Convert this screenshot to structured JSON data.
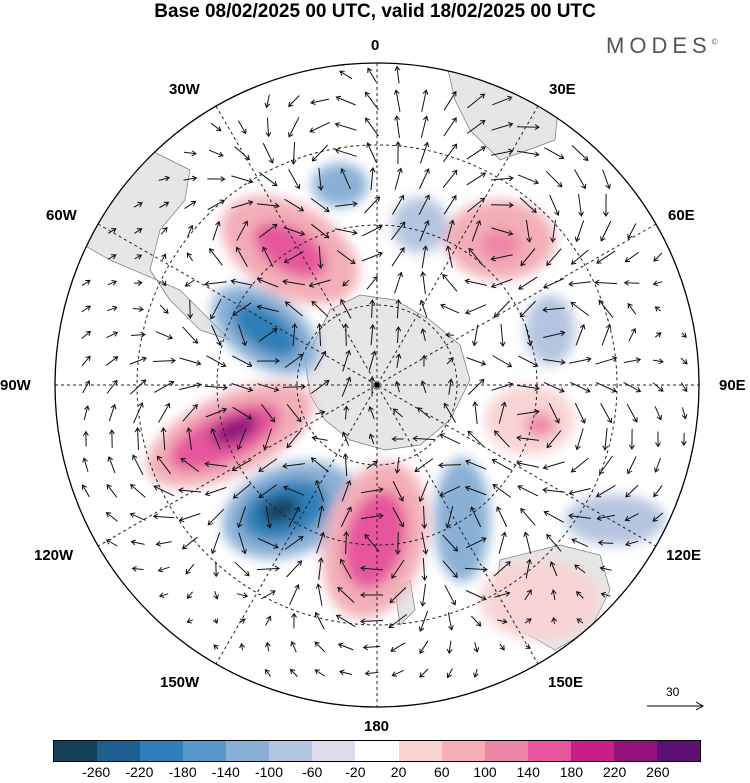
{
  "title": "Base 08/02/2025 00 UTC, valid 18/02/2025 00 UTC",
  "brand": "MODES",
  "brand_mark": "©",
  "lon_labels": {
    "n": "0",
    "ne1": "30E",
    "ne2": "60E",
    "e": "90E",
    "se2": "120E",
    "se1": "150E",
    "s": "180",
    "sw1": "150W",
    "sw2": "120W",
    "w": "90W",
    "nw2": "60W",
    "nw1": "30W"
  },
  "vector_reference": "30",
  "colorbar": {
    "colors": [
      "#163f5c",
      "#1d5f8e",
      "#2e7fb8",
      "#5699c8",
      "#8ab0d6",
      "#b5c4e0",
      "#dcdcee",
      "#ffffff",
      "#f8d4d4",
      "#f3aeb7",
      "#ee86a8",
      "#e5569c",
      "#c81e86",
      "#91127a",
      "#5b0f6f"
    ],
    "ticks": [
      "-260",
      "-220",
      "-180",
      "-140",
      "-100",
      "-60",
      "-20",
      "20",
      "60",
      "100",
      "140",
      "180",
      "220",
      "260"
    ]
  }
}
